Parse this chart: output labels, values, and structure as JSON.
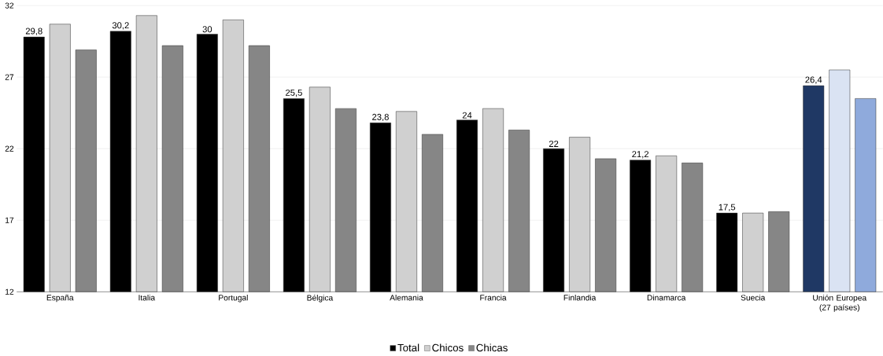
{
  "chart_data": {
    "type": "bar",
    "categories": [
      "España",
      "Italia",
      "Portugal",
      "Bélgica",
      "Alemania",
      "Francia",
      "Finlandia",
      "Dinamarca",
      "Suecia",
      "Unión Europea (27 países)"
    ],
    "series": [
      {
        "name": "Total",
        "color": "#000000",
        "colors": [
          "#000000",
          "#000000",
          "#000000",
          "#000000",
          "#000000",
          "#000000",
          "#000000",
          "#000000",
          "#000000",
          "#1f3864"
        ],
        "values": [
          29.8,
          30.2,
          30,
          25.5,
          23.8,
          24,
          22,
          21.2,
          17.5,
          26.4
        ],
        "value_labels": [
          "29,8",
          "30,2",
          "30",
          "25,5",
          "23,8",
          "24",
          "22",
          "21,2",
          "17,5",
          "26,4"
        ]
      },
      {
        "name": "Chicos",
        "color": "#d0d0d0",
        "colors": [
          "#d0d0d0",
          "#d0d0d0",
          "#d0d0d0",
          "#d0d0d0",
          "#d0d0d0",
          "#d0d0d0",
          "#d0d0d0",
          "#d0d0d0",
          "#d0d0d0",
          "#dae3f3"
        ],
        "values": [
          30.7,
          31.3,
          31.0,
          26.3,
          24.6,
          24.8,
          22.8,
          21.5,
          17.5,
          27.5
        ]
      },
      {
        "name": "Chicas",
        "color": "#868686",
        "colors": [
          "#868686",
          "#868686",
          "#868686",
          "#868686",
          "#868686",
          "#868686",
          "#868686",
          "#868686",
          "#868686",
          "#8faadc"
        ],
        "values": [
          28.9,
          29.2,
          29.2,
          24.8,
          23.0,
          23.3,
          21.3,
          21.0,
          17.6,
          25.5
        ]
      }
    ],
    "ylim": [
      12,
      32
    ],
    "yticks": [
      12,
      17,
      22,
      27,
      32
    ],
    "grid": "y",
    "legend": "bottom"
  }
}
